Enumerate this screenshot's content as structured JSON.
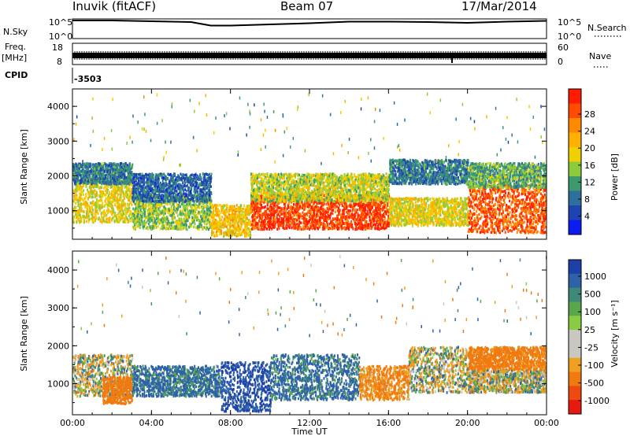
{
  "header": {
    "station": "Inuvik (fitACF)",
    "beam": "Beam 07",
    "date": "17/Mar/2014"
  },
  "top_panels": {
    "nsky_label": "N.Sky",
    "nsearch_label": "N.Search",
    "nsky_ticks": [
      "10^5",
      "10^0"
    ],
    "nsearch_ticks": [
      "10^5",
      "10^0"
    ],
    "freq_label": "Freq.",
    "freq_unit": "[MHz]",
    "freq_ticks": [
      "18",
      "8"
    ],
    "nave_label": "Nave",
    "nave_ticks": [
      "60",
      "0"
    ],
    "cpid_label": "CPID",
    "cpid_value": "-3503"
  },
  "power_panel": {
    "ylabel": "Slant Range [km]",
    "yticks": [
      "4000",
      "3000",
      "2000",
      "1000"
    ],
    "colorbar_label": "Power [dB]",
    "colorbar_ticks": [
      "28",
      "24",
      "20",
      "16",
      "12",
      "8",
      "4"
    ],
    "colorbar_colors": [
      "#ff1a00",
      "#ff4a00",
      "#ff8a00",
      "#ffb000",
      "#f0d000",
      "#8ccc3c",
      "#3d9a6e",
      "#2e6fa0",
      "#1d44b0",
      "#0a1cf0"
    ]
  },
  "velocity_panel": {
    "ylabel": "Slant Range [km]",
    "yticks": [
      "4000",
      "3000",
      "2000",
      "1000"
    ],
    "colorbar_label": "Velocity [m s⁻¹]",
    "colorbar_ticks": [
      "1000",
      "500",
      "100",
      "25",
      "-25",
      "-100",
      "-500",
      "-1000"
    ],
    "colorbar_colors": [
      "#1d3fa8",
      "#2e62a8",
      "#3d8a7a",
      "#5aa64a",
      "#88cc44",
      "#c8c8c0",
      "#c8c8c0",
      "#f0a020",
      "#f07a10",
      "#ee4a10",
      "#e81a10"
    ]
  },
  "time_axis": {
    "label": "Time UT",
    "ticks": [
      "00:00",
      "04:00",
      "08:00",
      "12:00",
      "16:00",
      "20:00",
      "00:00"
    ]
  },
  "chart_data": [
    {
      "type": "heatmap",
      "title": "Power",
      "x_range": [
        "00:00",
        "24:00"
      ],
      "y_range_km": [
        180,
        4500
      ],
      "value_label": "Power [dB]",
      "color_range_db": [
        0,
        32
      ],
      "regions": [
        {
          "t_start_h": 0.0,
          "t_end_h": 3.0,
          "range_km": [
            700,
            1900
          ],
          "power_db": 18
        },
        {
          "t_start_h": 0.0,
          "t_end_h": 3.0,
          "range_km": [
            1800,
            2400
          ],
          "power_db": 8
        },
        {
          "t_start_h": 3.0,
          "t_end_h": 7.0,
          "range_km": [
            500,
            1500
          ],
          "power_db": 14
        },
        {
          "t_start_h": 3.0,
          "t_end_h": 7.0,
          "range_km": [
            1300,
            2100
          ],
          "power_db": 6
        },
        {
          "t_start_h": 7.0,
          "t_end_h": 9.0,
          "range_km": [
            300,
            1200
          ],
          "power_db": 20
        },
        {
          "t_start_h": 9.0,
          "t_end_h": 16.0,
          "range_km": [
            500,
            1500
          ],
          "power_db": 30
        },
        {
          "t_start_h": 9.0,
          "t_end_h": 16.0,
          "range_km": [
            1300,
            2100
          ],
          "power_db": 16
        },
        {
          "t_start_h": 16.0,
          "t_end_h": 20.0,
          "range_km": [
            600,
            1400
          ],
          "power_db": 18
        },
        {
          "t_start_h": 16.0,
          "t_end_h": 20.0,
          "range_km": [
            1800,
            2500
          ],
          "power_db": 8
        },
        {
          "t_start_h": 20.0,
          "t_end_h": 24.0,
          "range_km": [
            400,
            1800
          ],
          "power_db": 28
        },
        {
          "t_start_h": 20.0,
          "t_end_h": 24.0,
          "range_km": [
            1700,
            2400
          ],
          "power_db": 12
        }
      ]
    },
    {
      "type": "heatmap",
      "title": "Velocity",
      "x_range": [
        "00:00",
        "24:00"
      ],
      "y_range_km": [
        180,
        4500
      ],
      "value_label": "Velocity [m s⁻¹]",
      "regions": [
        {
          "t_start_h": 0.0,
          "t_end_h": 3.0,
          "range_km": [
            700,
            1800
          ],
          "velocity_ms": 0
        },
        {
          "t_start_h": 1.5,
          "t_end_h": 3.0,
          "range_km": [
            500,
            1200
          ],
          "velocity_ms": -300
        },
        {
          "t_start_h": 3.0,
          "t_end_h": 7.5,
          "range_km": [
            700,
            1500
          ],
          "velocity_ms": 150
        },
        {
          "t_start_h": 7.5,
          "t_end_h": 10.0,
          "range_km": [
            300,
            1600
          ],
          "velocity_ms": 500
        },
        {
          "t_start_h": 10.0,
          "t_end_h": 14.5,
          "range_km": [
            600,
            1800
          ],
          "velocity_ms": 150
        },
        {
          "t_start_h": 14.5,
          "t_end_h": 17.0,
          "range_km": [
            600,
            1500
          ],
          "velocity_ms": -150
        },
        {
          "t_start_h": 17.0,
          "t_end_h": 20.0,
          "range_km": [
            800,
            2000
          ],
          "velocity_ms": 0
        },
        {
          "t_start_h": 20.0,
          "t_end_h": 24.0,
          "range_km": [
            800,
            1400
          ],
          "velocity_ms": 0
        },
        {
          "t_start_h": 20.0,
          "t_end_h": 24.0,
          "range_km": [
            1400,
            2000
          ],
          "velocity_ms": -200
        }
      ]
    },
    {
      "type": "line",
      "title": "N.Sky",
      "x": [
        0,
        2,
        4,
        6,
        7,
        8,
        10,
        12,
        14,
        16,
        18,
        20,
        22,
        24
      ],
      "y_log10": [
        4.6,
        4.6,
        4.4,
        4.2,
        3.3,
        3.3,
        3.6,
        3.9,
        4.3,
        4.3,
        4.2,
        4.0,
        4.3,
        4.5
      ]
    },
    {
      "type": "line",
      "title": "Freq.",
      "x": [
        0,
        24
      ],
      "y_mhz": [
        11,
        11
      ]
    }
  ]
}
